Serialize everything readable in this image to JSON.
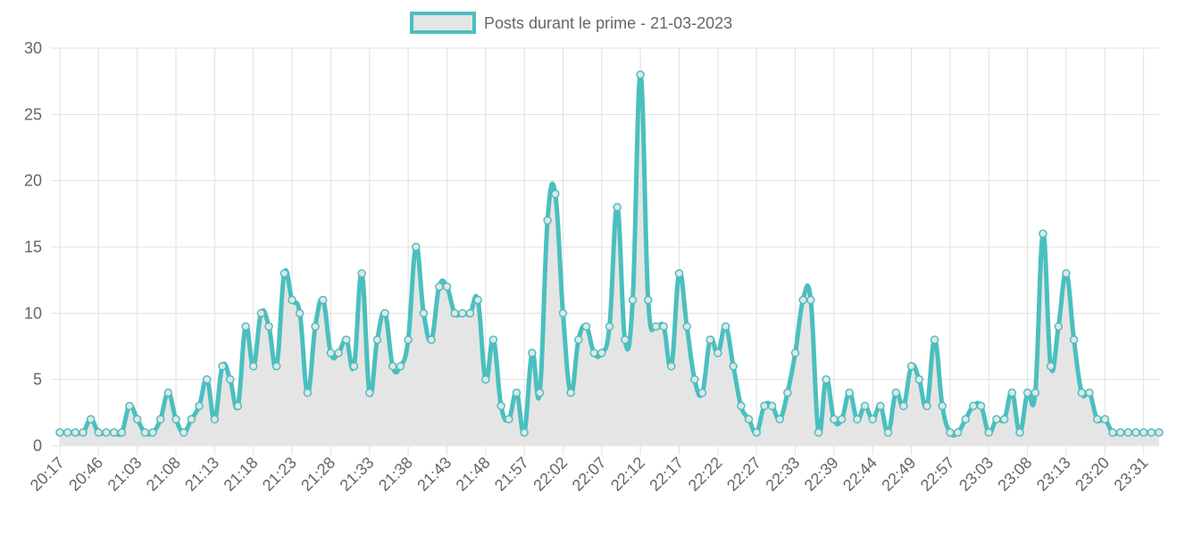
{
  "chart_data": {
    "type": "line",
    "categories": [
      "20:17",
      null,
      null,
      null,
      null,
      "20:46",
      null,
      null,
      null,
      null,
      "21:03",
      null,
      null,
      null,
      null,
      "21:08",
      null,
      null,
      null,
      null,
      "21:13",
      null,
      null,
      null,
      null,
      "21:18",
      null,
      null,
      null,
      null,
      "21:23",
      null,
      null,
      null,
      null,
      "21:28",
      null,
      null,
      null,
      null,
      "21:33",
      null,
      null,
      null,
      null,
      "21:38",
      null,
      null,
      null,
      null,
      "21:43",
      null,
      null,
      null,
      null,
      "21:48",
      null,
      null,
      null,
      null,
      "21:57",
      null,
      null,
      null,
      null,
      "22:02",
      null,
      null,
      null,
      null,
      "22:07",
      null,
      null,
      null,
      null,
      "22:12",
      null,
      null,
      null,
      null,
      "22:17",
      null,
      null,
      null,
      null,
      "22:22",
      null,
      null,
      null,
      null,
      "22:27",
      null,
      null,
      null,
      null,
      "22:33",
      null,
      null,
      null,
      null,
      "22:39",
      null,
      null,
      null,
      null,
      "22:44",
      null,
      null,
      null,
      null,
      "22:49",
      null,
      null,
      null,
      null,
      "22:57",
      null,
      null,
      null,
      null,
      "23:03",
      null,
      null,
      null,
      null,
      "23:08",
      null,
      null,
      null,
      null,
      "23:13",
      null,
      null,
      null,
      null,
      "23:20",
      null,
      null,
      null,
      null,
      "23:31",
      null,
      null
    ],
    "series": [
      {
        "name": "Posts durant le prime - 21-03-2023",
        "color": "#4bbfbf",
        "fill": "#e5e5e5",
        "values": [
          1,
          1,
          1,
          1,
          2,
          1,
          1,
          1,
          1,
          3,
          2,
          1,
          1,
          2,
          4,
          2,
          1,
          2,
          3,
          5,
          2,
          6,
          5,
          3,
          9,
          6,
          10,
          9,
          6,
          13,
          11,
          10,
          4,
          9,
          11,
          7,
          7,
          8,
          6,
          13,
          4,
          8,
          10,
          6,
          6,
          8,
          15,
          10,
          8,
          12,
          12,
          10,
          10,
          10,
          11,
          5,
          8,
          3,
          2,
          4,
          1,
          7,
          4,
          17,
          19,
          10,
          4,
          8,
          9,
          7,
          7,
          9,
          18,
          8,
          11,
          28,
          11,
          9,
          9,
          6,
          13,
          9,
          5,
          4,
          8,
          7,
          9,
          6,
          3,
          2,
          1,
          3,
          3,
          2,
          4,
          7,
          11,
          11,
          1,
          5,
          2,
          2,
          4,
          2,
          3,
          2,
          3,
          1,
          4,
          3,
          6,
          5,
          3,
          8,
          3,
          1,
          1,
          2,
          3,
          3,
          1,
          2,
          2,
          4,
          1,
          4,
          4,
          16,
          6,
          9,
          13,
          8,
          4,
          4,
          2,
          2,
          1,
          1,
          1,
          1,
          1,
          1,
          1
        ]
      }
    ],
    "ylim": [
      0,
      30
    ],
    "yticks": [
      0,
      5,
      10,
      15,
      20,
      25,
      30
    ],
    "grid": true
  }
}
